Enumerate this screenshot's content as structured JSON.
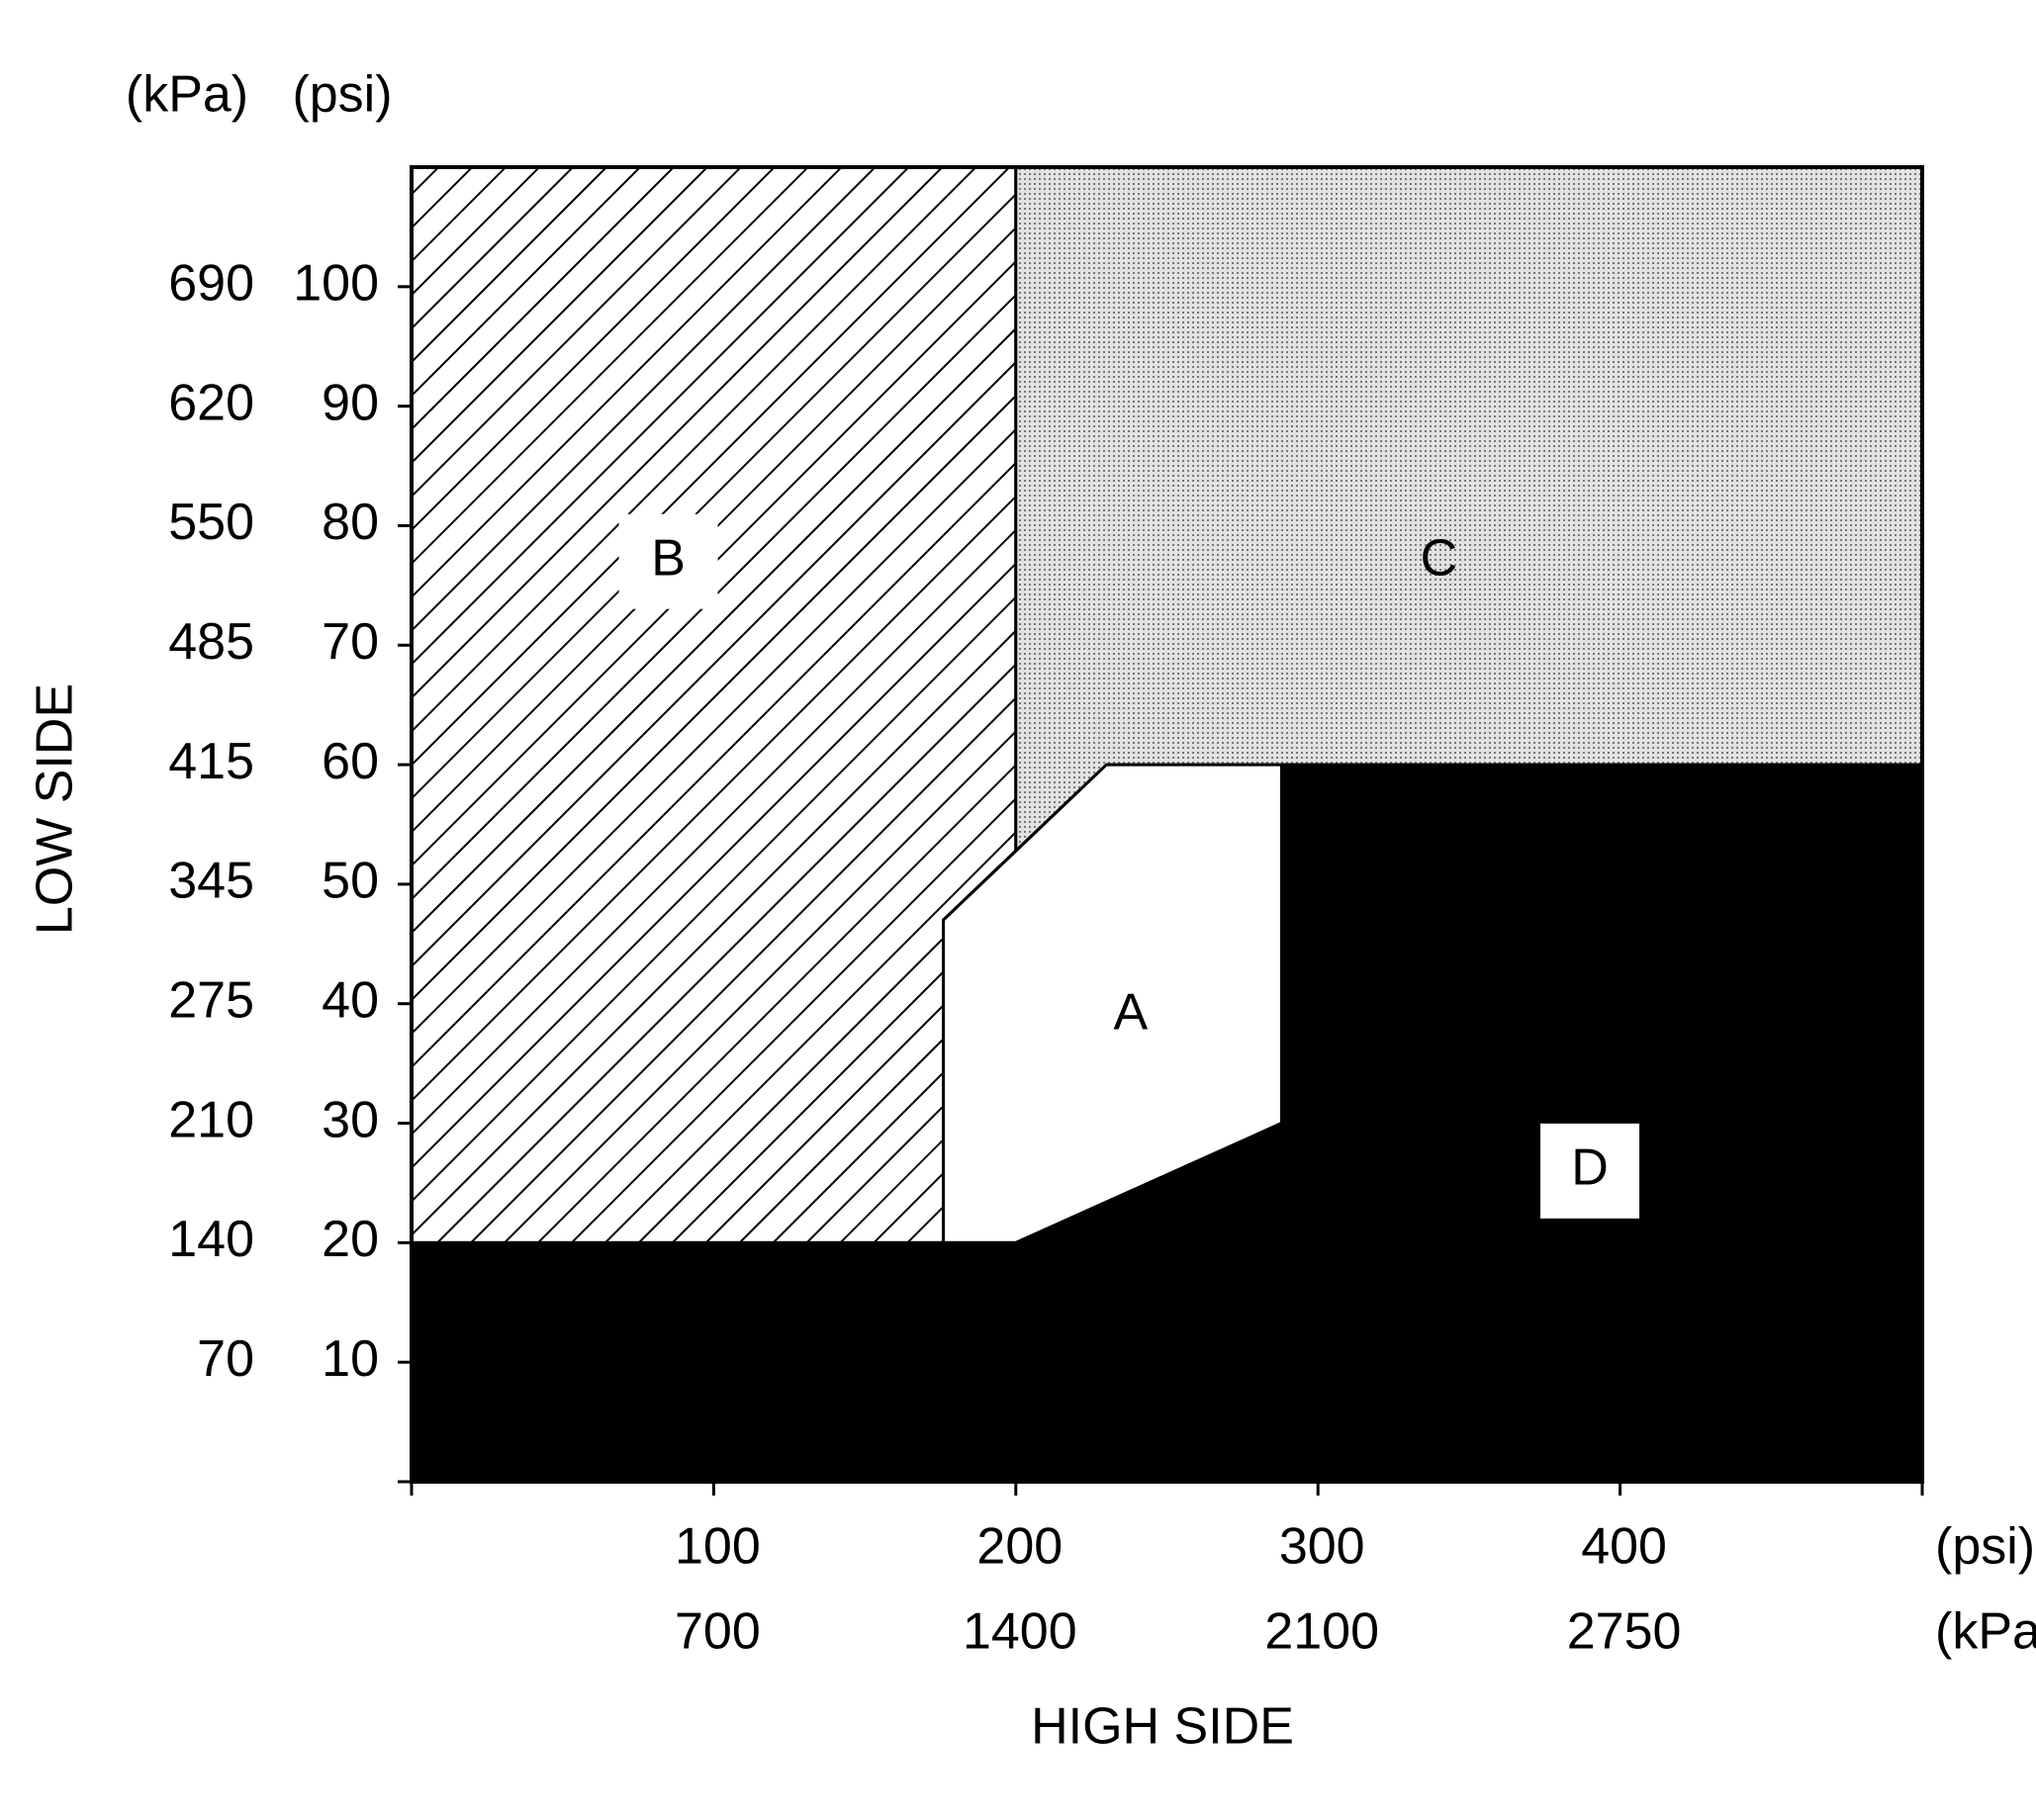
{
  "chart_data": {
    "type": "region",
    "xlabel": "HIGH SIDE",
    "ylabel": "LOW SIDE",
    "xlim": [
      0,
      500
    ],
    "ylim": [
      0,
      110
    ],
    "xticks": [
      100,
      200,
      300,
      400
    ],
    "xticks_kpa": [
      700,
      1400,
      2100,
      2750
    ],
    "yticks": [
      10,
      20,
      30,
      40,
      50,
      60,
      70,
      80,
      90,
      100
    ],
    "yticks_kpa": [
      70,
      140,
      210,
      275,
      345,
      415,
      485,
      550,
      620,
      690
    ],
    "x_unit_psi": "(psi)",
    "x_unit_kpa": "(kPa)",
    "y_unit_kpa": "(kPa)",
    "y_unit_psi": "(psi)",
    "regions": [
      {
        "label": "B",
        "fill": "hatch",
        "label_box": true,
        "x": [
          0,
          176,
          176,
          200,
          200,
          0
        ],
        "y": [
          20,
          20,
          47,
          52.8,
          110,
          110
        ]
      },
      {
        "label": "C",
        "fill": "stipple",
        "label_box": false,
        "x": [
          200,
          500,
          500,
          230,
          200
        ],
        "y": [
          110,
          110,
          60,
          60,
          52.8
        ]
      },
      {
        "label": "A",
        "fill": "white",
        "label_box": false,
        "x": [
          176,
          200,
          288,
          288,
          230,
          176
        ],
        "y": [
          20,
          20,
          30,
          60,
          60,
          47
        ]
      },
      {
        "label": "D",
        "fill": "black",
        "label_box": true,
        "x": [
          0,
          500,
          500,
          288,
          288,
          200,
          0
        ],
        "y": [
          0,
          0,
          60,
          60,
          30,
          20,
          20
        ]
      }
    ]
  }
}
